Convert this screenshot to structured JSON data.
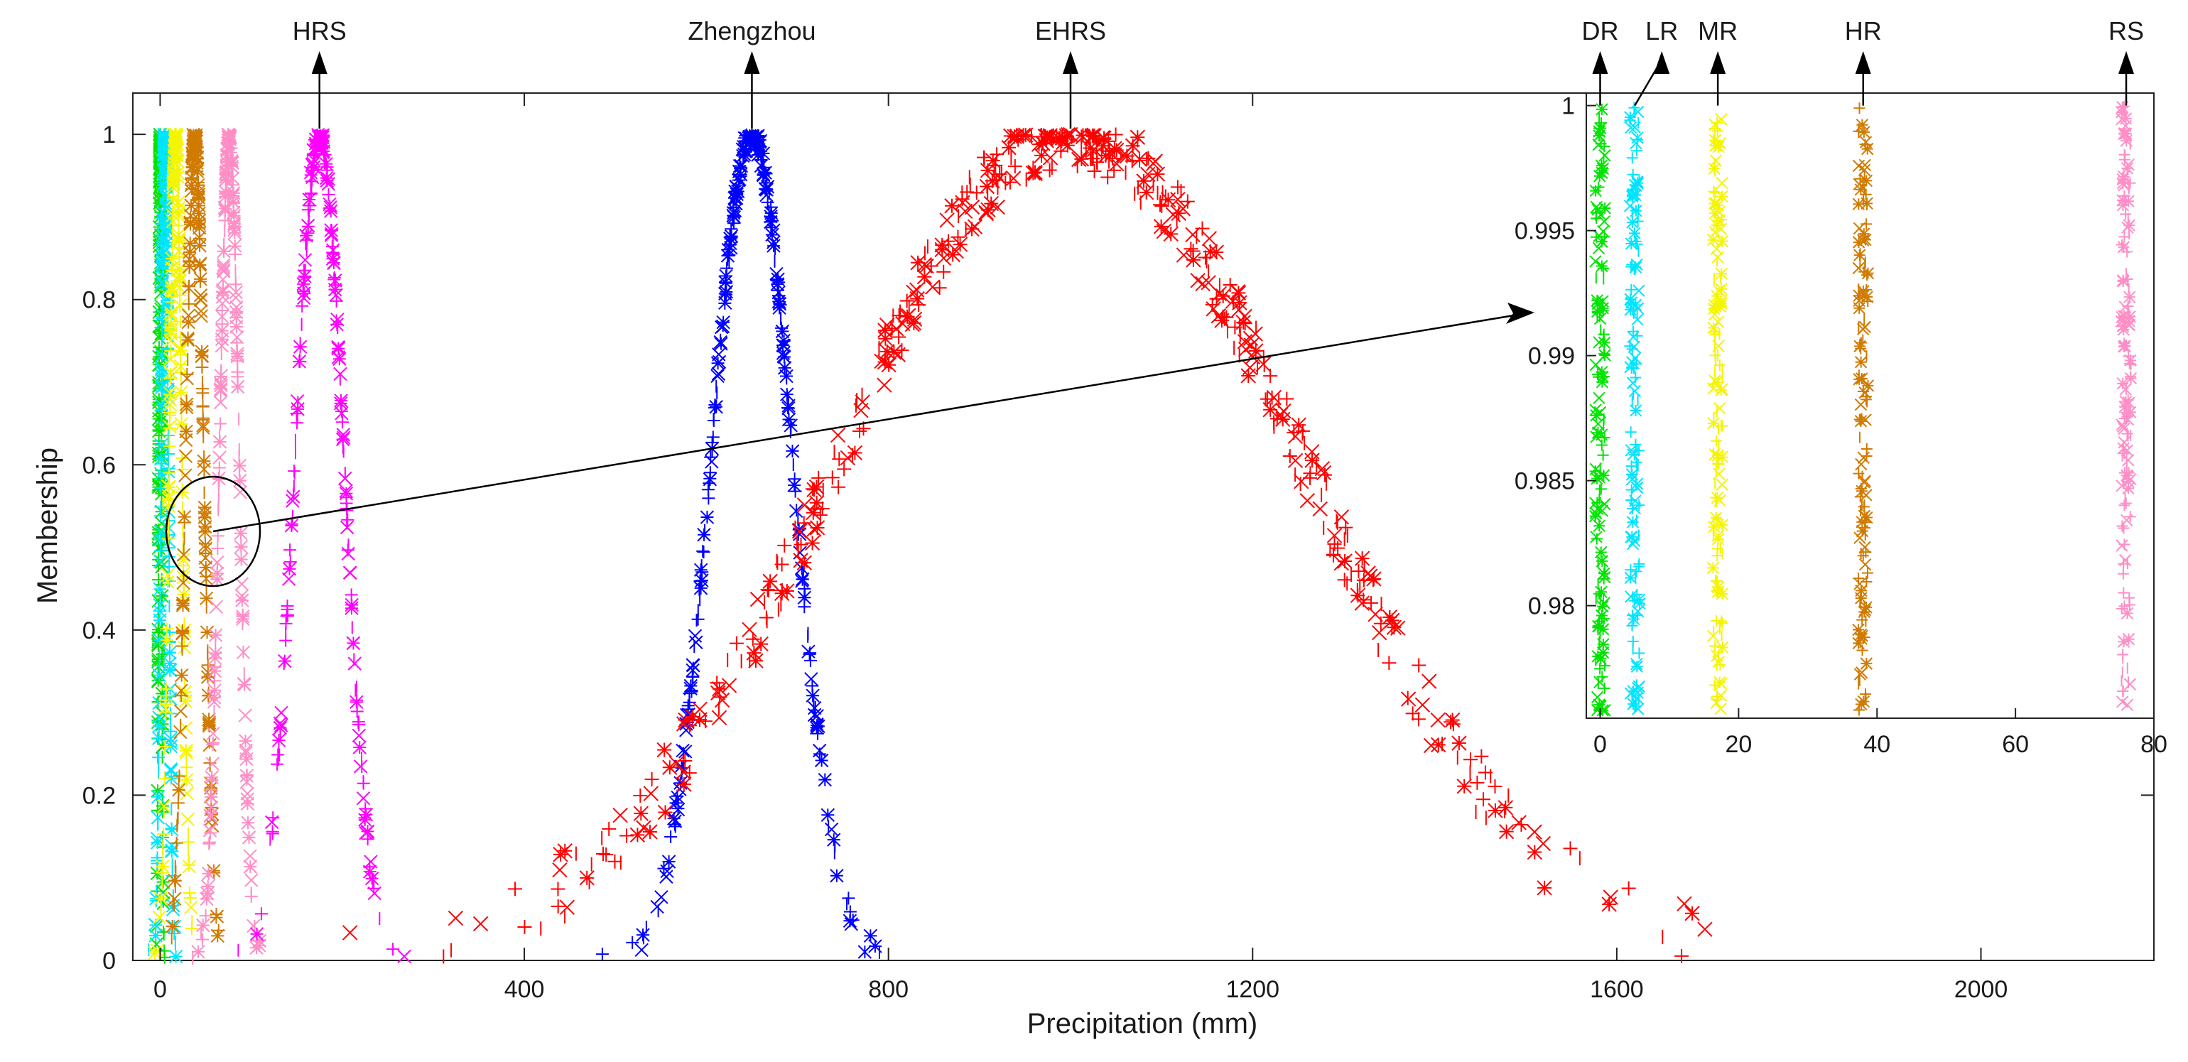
{
  "chart_data": {
    "type": "scatter",
    "main": {
      "xlabel": "Precipitation (mm)",
      "ylabel": "Membership",
      "xlim": [
        -30,
        2190
      ],
      "ylim": [
        0,
        1.05
      ],
      "xticks": [
        0,
        400,
        800,
        1200,
        1600,
        2000
      ],
      "xtick_labels": [
        "0",
        "400",
        "800",
        "1200",
        "1600",
        "2000"
      ],
      "yticks": [
        0,
        0.2,
        0.4,
        0.6,
        0.8,
        1
      ],
      "ytick_labels": [
        "0",
        "0.2",
        "0.4",
        "0.6",
        "0.8",
        "1"
      ],
      "series": [
        {
          "name": "DR",
          "color": "#00e400",
          "center": 0,
          "sigma": 1.5
        },
        {
          "name": "LR",
          "color": "#00e5ff",
          "center": 5,
          "sigma": 4
        },
        {
          "name": "MR",
          "color": "#f5f500",
          "center": 17,
          "sigma": 7
        },
        {
          "name": "HR",
          "color": "#d07a00",
          "center": 38,
          "sigma": 10
        },
        {
          "name": "RS",
          "color": "#ff8ec6",
          "center": 76,
          "sigma": 11
        },
        {
          "name": "HRS",
          "color": "#ff00ff",
          "center": 175,
          "sigma": 27
        },
        {
          "name": "Zhengzhou",
          "color": "#0000ff",
          "center": 650,
          "sigma": 45
        },
        {
          "name": "EHRS",
          "color": "#ff0000",
          "center": 1000,
          "sigma": 255
        }
      ],
      "category_labels": [
        "HRS",
        "Zhengzhou",
        "EHRS"
      ]
    },
    "inset": {
      "xlim": [
        -2,
        80
      ],
      "ylim": [
        0.9755,
        1.0005
      ],
      "xticks": [
        0,
        20,
        40,
        60,
        80
      ],
      "xtick_labels": [
        "0",
        "20",
        "40",
        "60",
        "80"
      ],
      "yticks": [
        0.98,
        0.985,
        0.99,
        0.995,
        1
      ],
      "ytick_labels": [
        "0.98",
        "0.985",
        "0.99",
        "0.995",
        "1"
      ],
      "series": [
        {
          "name": "DR",
          "color": "#00e400",
          "center": 0
        },
        {
          "name": "LR",
          "color": "#00e5ff",
          "center": 5
        },
        {
          "name": "MR",
          "color": "#f5f500",
          "center": 17
        },
        {
          "name": "HR",
          "color": "#d07a00",
          "center": 38
        },
        {
          "name": "RS",
          "color": "#ff8ec6",
          "center": 76
        }
      ],
      "category_labels": [
        "DR",
        "LR",
        "MR",
        "HR",
        "RS"
      ]
    }
  }
}
